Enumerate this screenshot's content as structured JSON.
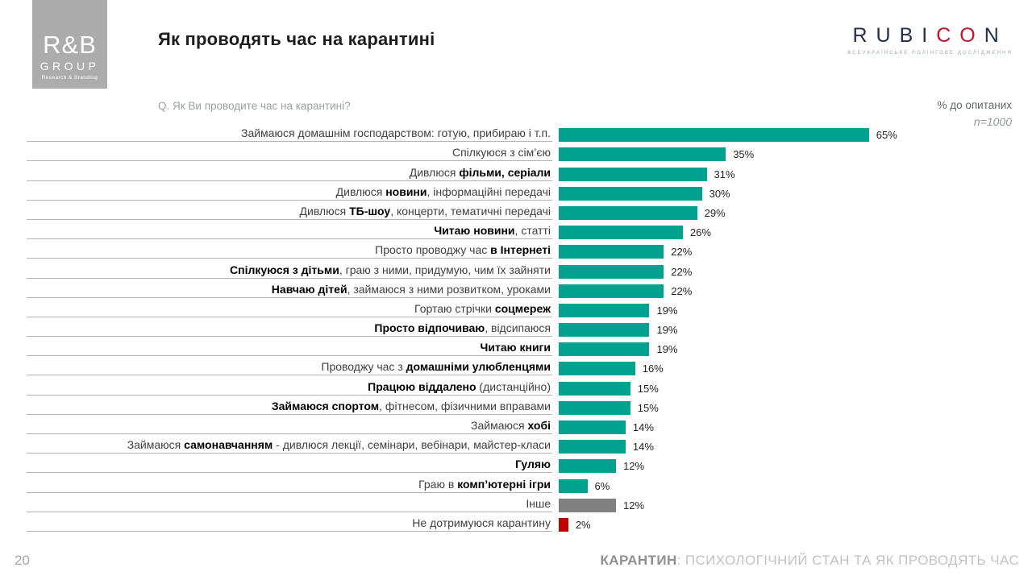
{
  "header": {
    "rb_logo": {
      "name": "R&B",
      "group": "GROUP",
      "sub": "Research & Branding"
    },
    "title": "Як проводять час на карантині",
    "rubicon": {
      "part1": "RUBI",
      "part2": "CO",
      "part3": "N",
      "tagline": "ВСЕУКРАЇНСЬКЕ РОЛІНГОВЕ ДОСЛІДЖЕННЯ"
    }
  },
  "chart_meta": {
    "question": "Q. Як Ви проводите час на карантині?",
    "pct_note": "% до опитаних",
    "sample": "n=1000"
  },
  "chart_data": {
    "type": "bar",
    "orientation": "horizontal",
    "title": "Як проводять час на карантині",
    "unit": "%",
    "xlim": [
      0,
      68
    ],
    "grid": false,
    "legend": false,
    "value_labels": true,
    "colors": {
      "default": "#00A18F",
      "other": "#808080",
      "negative": "#C00000"
    },
    "categories": [
      "Займаюся домашнім господарством: готую, прибираю і т.п.",
      "Спілкуюся з сім’єю",
      "Дивлюся фільми, серіали",
      "Дивлюся новини, інформаційні передачі",
      "Дивлюся ТБ-шоу, концерти, тематичні передачі",
      "Читаю новини, статті",
      "Просто проводжу час в Інтернеті",
      "Спілкуюся з дітьми, граю з ними, придумую, чим їх зайняти",
      "Навчаю дітей, займаюся з ними розвитком, уроками",
      "Гортаю стрічки соцмереж",
      "Просто відпочиваю, відсипаюся",
      "Читаю книги",
      "Проводжу час з домашніми улюбленцями",
      "Працюю віддалено (дистанційно)",
      "Займаюся спортом, фітнесом, фізичними вправами",
      "Займаюся хобі",
      "Займаюся самонавчанням - дивлюся лекції, семінари, вебінари, майстер-класи",
      "Гуляю",
      "Граю в комп’ютерні ігри",
      "Інше",
      "Не дотримуюся карантину"
    ],
    "label_rich": [
      [
        {
          "t": "Займаюся домашнім господарством: готую, прибираю і т.п.",
          "b": false
        }
      ],
      [
        {
          "t": "Спілкуюся з сім’єю",
          "b": false
        }
      ],
      [
        {
          "t": "Дивлюся ",
          "b": false
        },
        {
          "t": "фільми, серіали",
          "b": true
        }
      ],
      [
        {
          "t": "Дивлюся ",
          "b": false
        },
        {
          "t": "новини",
          "b": true
        },
        {
          "t": ", інформаційні передачі",
          "b": false
        }
      ],
      [
        {
          "t": "Дивлюся ",
          "b": false
        },
        {
          "t": "ТБ-шоу",
          "b": true
        },
        {
          "t": ", концерти, тематичні передачі",
          "b": false
        }
      ],
      [
        {
          "t": "Читаю новини",
          "b": true
        },
        {
          "t": ", статті",
          "b": false
        }
      ],
      [
        {
          "t": "Просто проводжу час ",
          "b": false
        },
        {
          "t": "в Інтернеті",
          "b": true
        }
      ],
      [
        {
          "t": "Спілкуюся з дітьми",
          "b": true
        },
        {
          "t": ", граю з ними, придумую, чим їх зайняти",
          "b": false
        }
      ],
      [
        {
          "t": "Навчаю дітей",
          "b": true
        },
        {
          "t": ", займаюся з ними розвитком, уроками",
          "b": false
        }
      ],
      [
        {
          "t": "Гортаю стрічки ",
          "b": false
        },
        {
          "t": "соцмереж",
          "b": true
        }
      ],
      [
        {
          "t": "Просто відпочиваю",
          "b": true
        },
        {
          "t": ", відсипаюся",
          "b": false
        }
      ],
      [
        {
          "t": "Читаю книги",
          "b": true
        }
      ],
      [
        {
          "t": "Проводжу час з ",
          "b": false
        },
        {
          "t": "домашніми улюбленцями",
          "b": true
        }
      ],
      [
        {
          "t": "Працюю віддалено",
          "b": true
        },
        {
          "t": " (дистанційно)",
          "b": false
        }
      ],
      [
        {
          "t": "Займаюся спортом",
          "b": true
        },
        {
          "t": ", фітнесом, фізичними вправами",
          "b": false
        }
      ],
      [
        {
          "t": "Займаюся ",
          "b": false
        },
        {
          "t": "хобі",
          "b": true
        }
      ],
      [
        {
          "t": "Займаюся ",
          "b": false
        },
        {
          "t": "самонавчанням",
          "b": true
        },
        {
          "t": " - дивлюся лекції, семінари, вебінари, майстер-класи",
          "b": false
        }
      ],
      [
        {
          "t": "Гуляю",
          "b": true
        }
      ],
      [
        {
          "t": "Граю в ",
          "b": false
        },
        {
          "t": "комп’ютерні ігри",
          "b": true
        }
      ],
      [
        {
          "t": "Інше",
          "b": false
        }
      ],
      [
        {
          "t": "Не дотримуюся карантину",
          "b": false
        }
      ]
    ],
    "values": [
      65,
      35,
      31,
      30,
      29,
      26,
      22,
      22,
      22,
      19,
      19,
      19,
      16,
      15,
      15,
      14,
      14,
      12,
      6,
      12,
      2
    ],
    "bar_colors": [
      "#00A18F",
      "#00A18F",
      "#00A18F",
      "#00A18F",
      "#00A18F",
      "#00A18F",
      "#00A18F",
      "#00A18F",
      "#00A18F",
      "#00A18F",
      "#00A18F",
      "#00A18F",
      "#00A18F",
      "#00A18F",
      "#00A18F",
      "#00A18F",
      "#00A18F",
      "#00A18F",
      "#00A18F",
      "#808080",
      "#C00000"
    ]
  },
  "footer": {
    "page": "20",
    "title_bold": "КАРАНТИН",
    "title_rest": ": ПСИХОЛОГІЧНИЙ СТАН ТА ЯК ПРОВОДЯТЬ ЧАС"
  }
}
